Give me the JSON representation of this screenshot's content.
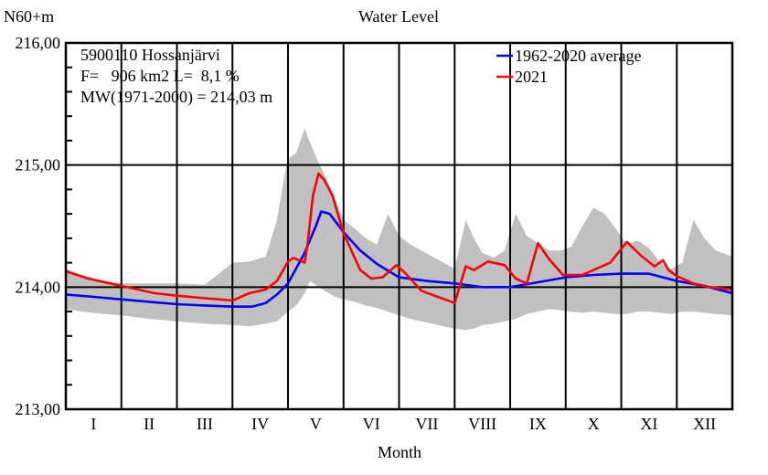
{
  "chart_data": {
    "type": "line",
    "title": "Water Level",
    "ylabel": "N60+m",
    "xlabel": "Month",
    "ylim": [
      213.0,
      216.0
    ],
    "xlim": [
      0,
      12
    ],
    "y_major_ticks": [
      213.0,
      214.0,
      215.0,
      216.0
    ],
    "y_tick_labels": [
      "213,00",
      "214,00",
      "215,00",
      "216,00"
    ],
    "y_minor_step": 0.2,
    "x_tick_labels": [
      "I",
      "II",
      "III",
      "IV",
      "V",
      "VI",
      "VII",
      "VIII",
      "IX",
      "X",
      "XI",
      "XII"
    ],
    "grid": "month boundaries and major y ticks",
    "annotations": [
      "5900110 Hossanjärvi",
      "F=   906 km2 L=  8,1 %",
      "MW(1971-2000) = 214,03 m"
    ],
    "legend_position": "top-right",
    "legend": [
      {
        "name": "1962-2020 average",
        "color": "#0000ff"
      },
      {
        "name": "2021",
        "color": "#ff0000"
      }
    ],
    "band": {
      "name": "min-max range",
      "color": "#c0c0c0",
      "x": [
        0,
        0.3,
        0.7,
        1.0,
        1.5,
        2.0,
        2.5,
        3.0,
        3.3,
        3.6,
        3.8,
        3.95,
        4.0,
        4.15,
        4.3,
        4.4,
        4.55,
        4.7,
        4.85,
        5.0,
        5.2,
        5.4,
        5.6,
        5.8,
        6.0,
        6.2,
        6.4,
        6.6,
        6.8,
        7.0,
        7.2,
        7.35,
        7.5,
        7.7,
        7.9,
        8.1,
        8.3,
        8.5,
        8.7,
        8.9,
        9.1,
        9.3,
        9.5,
        9.7,
        9.9,
        10.1,
        10.3,
        10.5,
        10.7,
        10.9,
        11.1,
        11.3,
        11.5,
        11.7,
        12.0
      ],
      "upper": [
        214.15,
        214.1,
        214.05,
        214.03,
        214.03,
        214.03,
        214.02,
        214.2,
        214.21,
        214.25,
        214.55,
        214.95,
        215.05,
        215.1,
        215.3,
        215.18,
        215.02,
        214.88,
        214.72,
        214.55,
        214.48,
        214.4,
        214.35,
        214.6,
        214.42,
        214.35,
        214.3,
        214.25,
        214.2,
        214.15,
        214.55,
        214.4,
        214.28,
        214.24,
        214.3,
        214.6,
        214.42,
        214.36,
        214.3,
        214.3,
        214.33,
        214.5,
        214.65,
        214.6,
        214.48,
        214.35,
        214.38,
        214.32,
        214.2,
        214.15,
        214.2,
        214.55,
        214.4,
        214.3,
        214.25
      ],
      "lower": [
        213.82,
        213.8,
        213.78,
        213.77,
        213.74,
        213.72,
        213.7,
        213.69,
        213.68,
        213.7,
        213.72,
        213.78,
        213.8,
        213.85,
        213.95,
        214.05,
        214.0,
        213.96,
        213.92,
        213.9,
        213.88,
        213.85,
        213.83,
        213.8,
        213.77,
        213.74,
        213.72,
        213.7,
        213.68,
        213.66,
        213.65,
        213.66,
        213.69,
        213.7,
        213.72,
        213.74,
        213.78,
        213.8,
        213.82,
        213.81,
        213.8,
        213.79,
        213.8,
        213.79,
        213.78,
        213.78,
        213.8,
        213.8,
        213.79,
        213.78,
        213.8,
        213.8,
        213.79,
        213.78,
        213.77
      ]
    },
    "series": [
      {
        "name": "1962-2020 average",
        "color": "#0000ff",
        "x": [
          0,
          0.5,
          1.0,
          1.5,
          2.0,
          2.5,
          3.0,
          3.35,
          3.6,
          3.8,
          4.0,
          4.3,
          4.5,
          4.6,
          4.75,
          5.0,
          5.3,
          5.6,
          6.0,
          6.5,
          7.0,
          7.5,
          8.0,
          8.5,
          9.0,
          9.5,
          10.0,
          10.5,
          11.0,
          11.5,
          12.0
        ],
        "values": [
          213.94,
          213.92,
          213.9,
          213.88,
          213.86,
          213.85,
          213.84,
          213.84,
          213.87,
          213.94,
          214.03,
          214.28,
          214.5,
          214.62,
          214.6,
          214.45,
          214.3,
          214.19,
          214.08,
          214.05,
          214.03,
          214.0,
          214.0,
          214.04,
          214.08,
          214.1,
          214.11,
          214.11,
          214.05,
          214.01,
          213.95
        ]
      },
      {
        "name": "2021",
        "color": "#ff0000",
        "x": [
          0,
          0.4,
          0.8,
          1.0,
          1.3,
          1.6,
          2.0,
          2.5,
          3.0,
          3.3,
          3.6,
          3.8,
          4.0,
          4.1,
          4.3,
          4.35,
          4.45,
          4.55,
          4.65,
          4.8,
          5.0,
          5.3,
          5.5,
          5.7,
          5.95,
          6.1,
          6.4,
          6.7,
          7.0,
          7.2,
          7.35,
          7.6,
          7.9,
          8.1,
          8.3,
          8.5,
          8.7,
          8.95,
          9.3,
          9.6,
          9.8,
          10.1,
          10.35,
          10.6,
          10.75,
          10.85,
          11.0,
          11.3,
          11.6,
          12.0
        ],
        "values": [
          214.13,
          214.07,
          214.03,
          214.01,
          213.98,
          213.95,
          213.93,
          213.91,
          213.89,
          213.95,
          213.98,
          214.05,
          214.21,
          214.24,
          214.2,
          214.35,
          214.75,
          214.93,
          214.88,
          214.75,
          214.44,
          214.14,
          214.07,
          214.08,
          214.18,
          214.12,
          213.97,
          213.92,
          213.87,
          214.17,
          214.14,
          214.21,
          214.18,
          214.07,
          214.03,
          214.36,
          214.23,
          214.1,
          214.1,
          214.16,
          214.2,
          214.37,
          214.26,
          214.17,
          214.22,
          214.14,
          214.09,
          214.03,
          214.0,
          213.98
        ]
      }
    ]
  }
}
